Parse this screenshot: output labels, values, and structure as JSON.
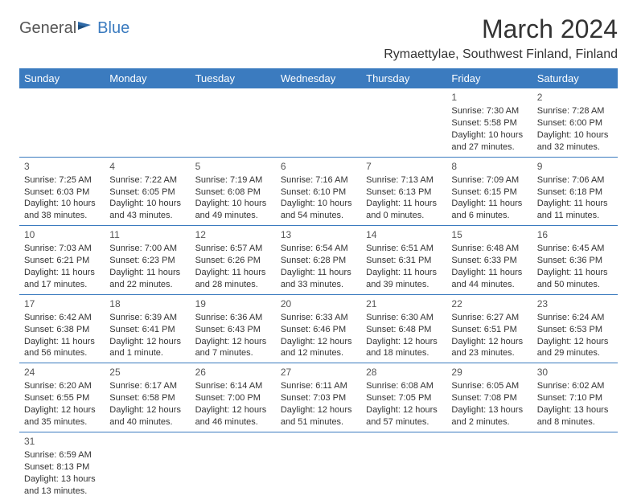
{
  "logo": {
    "text1": "General",
    "text2": "Blue"
  },
  "title": "March 2024",
  "location": "Rymaettylae, Southwest Finland, Finland",
  "colors": {
    "header_bg": "#3b7bbf",
    "header_fg": "#ffffff",
    "rule": "#3b7bbf",
    "text": "#333333"
  },
  "day_headers": [
    "Sunday",
    "Monday",
    "Tuesday",
    "Wednesday",
    "Thursday",
    "Friday",
    "Saturday"
  ],
  "weeks": [
    [
      null,
      null,
      null,
      null,
      null,
      {
        "n": "1",
        "sr": "Sunrise: 7:30 AM",
        "ss": "Sunset: 5:58 PM",
        "dl1": "Daylight: 10 hours",
        "dl2": "and 27 minutes."
      },
      {
        "n": "2",
        "sr": "Sunrise: 7:28 AM",
        "ss": "Sunset: 6:00 PM",
        "dl1": "Daylight: 10 hours",
        "dl2": "and 32 minutes."
      }
    ],
    [
      {
        "n": "3",
        "sr": "Sunrise: 7:25 AM",
        "ss": "Sunset: 6:03 PM",
        "dl1": "Daylight: 10 hours",
        "dl2": "and 38 minutes."
      },
      {
        "n": "4",
        "sr": "Sunrise: 7:22 AM",
        "ss": "Sunset: 6:05 PM",
        "dl1": "Daylight: 10 hours",
        "dl2": "and 43 minutes."
      },
      {
        "n": "5",
        "sr": "Sunrise: 7:19 AM",
        "ss": "Sunset: 6:08 PM",
        "dl1": "Daylight: 10 hours",
        "dl2": "and 49 minutes."
      },
      {
        "n": "6",
        "sr": "Sunrise: 7:16 AM",
        "ss": "Sunset: 6:10 PM",
        "dl1": "Daylight: 10 hours",
        "dl2": "and 54 minutes."
      },
      {
        "n": "7",
        "sr": "Sunrise: 7:13 AM",
        "ss": "Sunset: 6:13 PM",
        "dl1": "Daylight: 11 hours",
        "dl2": "and 0 minutes."
      },
      {
        "n": "8",
        "sr": "Sunrise: 7:09 AM",
        "ss": "Sunset: 6:15 PM",
        "dl1": "Daylight: 11 hours",
        "dl2": "and 6 minutes."
      },
      {
        "n": "9",
        "sr": "Sunrise: 7:06 AM",
        "ss": "Sunset: 6:18 PM",
        "dl1": "Daylight: 11 hours",
        "dl2": "and 11 minutes."
      }
    ],
    [
      {
        "n": "10",
        "sr": "Sunrise: 7:03 AM",
        "ss": "Sunset: 6:21 PM",
        "dl1": "Daylight: 11 hours",
        "dl2": "and 17 minutes."
      },
      {
        "n": "11",
        "sr": "Sunrise: 7:00 AM",
        "ss": "Sunset: 6:23 PM",
        "dl1": "Daylight: 11 hours",
        "dl2": "and 22 minutes."
      },
      {
        "n": "12",
        "sr": "Sunrise: 6:57 AM",
        "ss": "Sunset: 6:26 PM",
        "dl1": "Daylight: 11 hours",
        "dl2": "and 28 minutes."
      },
      {
        "n": "13",
        "sr": "Sunrise: 6:54 AM",
        "ss": "Sunset: 6:28 PM",
        "dl1": "Daylight: 11 hours",
        "dl2": "and 33 minutes."
      },
      {
        "n": "14",
        "sr": "Sunrise: 6:51 AM",
        "ss": "Sunset: 6:31 PM",
        "dl1": "Daylight: 11 hours",
        "dl2": "and 39 minutes."
      },
      {
        "n": "15",
        "sr": "Sunrise: 6:48 AM",
        "ss": "Sunset: 6:33 PM",
        "dl1": "Daylight: 11 hours",
        "dl2": "and 44 minutes."
      },
      {
        "n": "16",
        "sr": "Sunrise: 6:45 AM",
        "ss": "Sunset: 6:36 PM",
        "dl1": "Daylight: 11 hours",
        "dl2": "and 50 minutes."
      }
    ],
    [
      {
        "n": "17",
        "sr": "Sunrise: 6:42 AM",
        "ss": "Sunset: 6:38 PM",
        "dl1": "Daylight: 11 hours",
        "dl2": "and 56 minutes."
      },
      {
        "n": "18",
        "sr": "Sunrise: 6:39 AM",
        "ss": "Sunset: 6:41 PM",
        "dl1": "Daylight: 12 hours",
        "dl2": "and 1 minute."
      },
      {
        "n": "19",
        "sr": "Sunrise: 6:36 AM",
        "ss": "Sunset: 6:43 PM",
        "dl1": "Daylight: 12 hours",
        "dl2": "and 7 minutes."
      },
      {
        "n": "20",
        "sr": "Sunrise: 6:33 AM",
        "ss": "Sunset: 6:46 PM",
        "dl1": "Daylight: 12 hours",
        "dl2": "and 12 minutes."
      },
      {
        "n": "21",
        "sr": "Sunrise: 6:30 AM",
        "ss": "Sunset: 6:48 PM",
        "dl1": "Daylight: 12 hours",
        "dl2": "and 18 minutes."
      },
      {
        "n": "22",
        "sr": "Sunrise: 6:27 AM",
        "ss": "Sunset: 6:51 PM",
        "dl1": "Daylight: 12 hours",
        "dl2": "and 23 minutes."
      },
      {
        "n": "23",
        "sr": "Sunrise: 6:24 AM",
        "ss": "Sunset: 6:53 PM",
        "dl1": "Daylight: 12 hours",
        "dl2": "and 29 minutes."
      }
    ],
    [
      {
        "n": "24",
        "sr": "Sunrise: 6:20 AM",
        "ss": "Sunset: 6:55 PM",
        "dl1": "Daylight: 12 hours",
        "dl2": "and 35 minutes."
      },
      {
        "n": "25",
        "sr": "Sunrise: 6:17 AM",
        "ss": "Sunset: 6:58 PM",
        "dl1": "Daylight: 12 hours",
        "dl2": "and 40 minutes."
      },
      {
        "n": "26",
        "sr": "Sunrise: 6:14 AM",
        "ss": "Sunset: 7:00 PM",
        "dl1": "Daylight: 12 hours",
        "dl2": "and 46 minutes."
      },
      {
        "n": "27",
        "sr": "Sunrise: 6:11 AM",
        "ss": "Sunset: 7:03 PM",
        "dl1": "Daylight: 12 hours",
        "dl2": "and 51 minutes."
      },
      {
        "n": "28",
        "sr": "Sunrise: 6:08 AM",
        "ss": "Sunset: 7:05 PM",
        "dl1": "Daylight: 12 hours",
        "dl2": "and 57 minutes."
      },
      {
        "n": "29",
        "sr": "Sunrise: 6:05 AM",
        "ss": "Sunset: 7:08 PM",
        "dl1": "Daylight: 13 hours",
        "dl2": "and 2 minutes."
      },
      {
        "n": "30",
        "sr": "Sunrise: 6:02 AM",
        "ss": "Sunset: 7:10 PM",
        "dl1": "Daylight: 13 hours",
        "dl2": "and 8 minutes."
      }
    ],
    [
      {
        "n": "31",
        "sr": "Sunrise: 6:59 AM",
        "ss": "Sunset: 8:13 PM",
        "dl1": "Daylight: 13 hours",
        "dl2": "and 13 minutes."
      },
      null,
      null,
      null,
      null,
      null,
      null
    ]
  ]
}
